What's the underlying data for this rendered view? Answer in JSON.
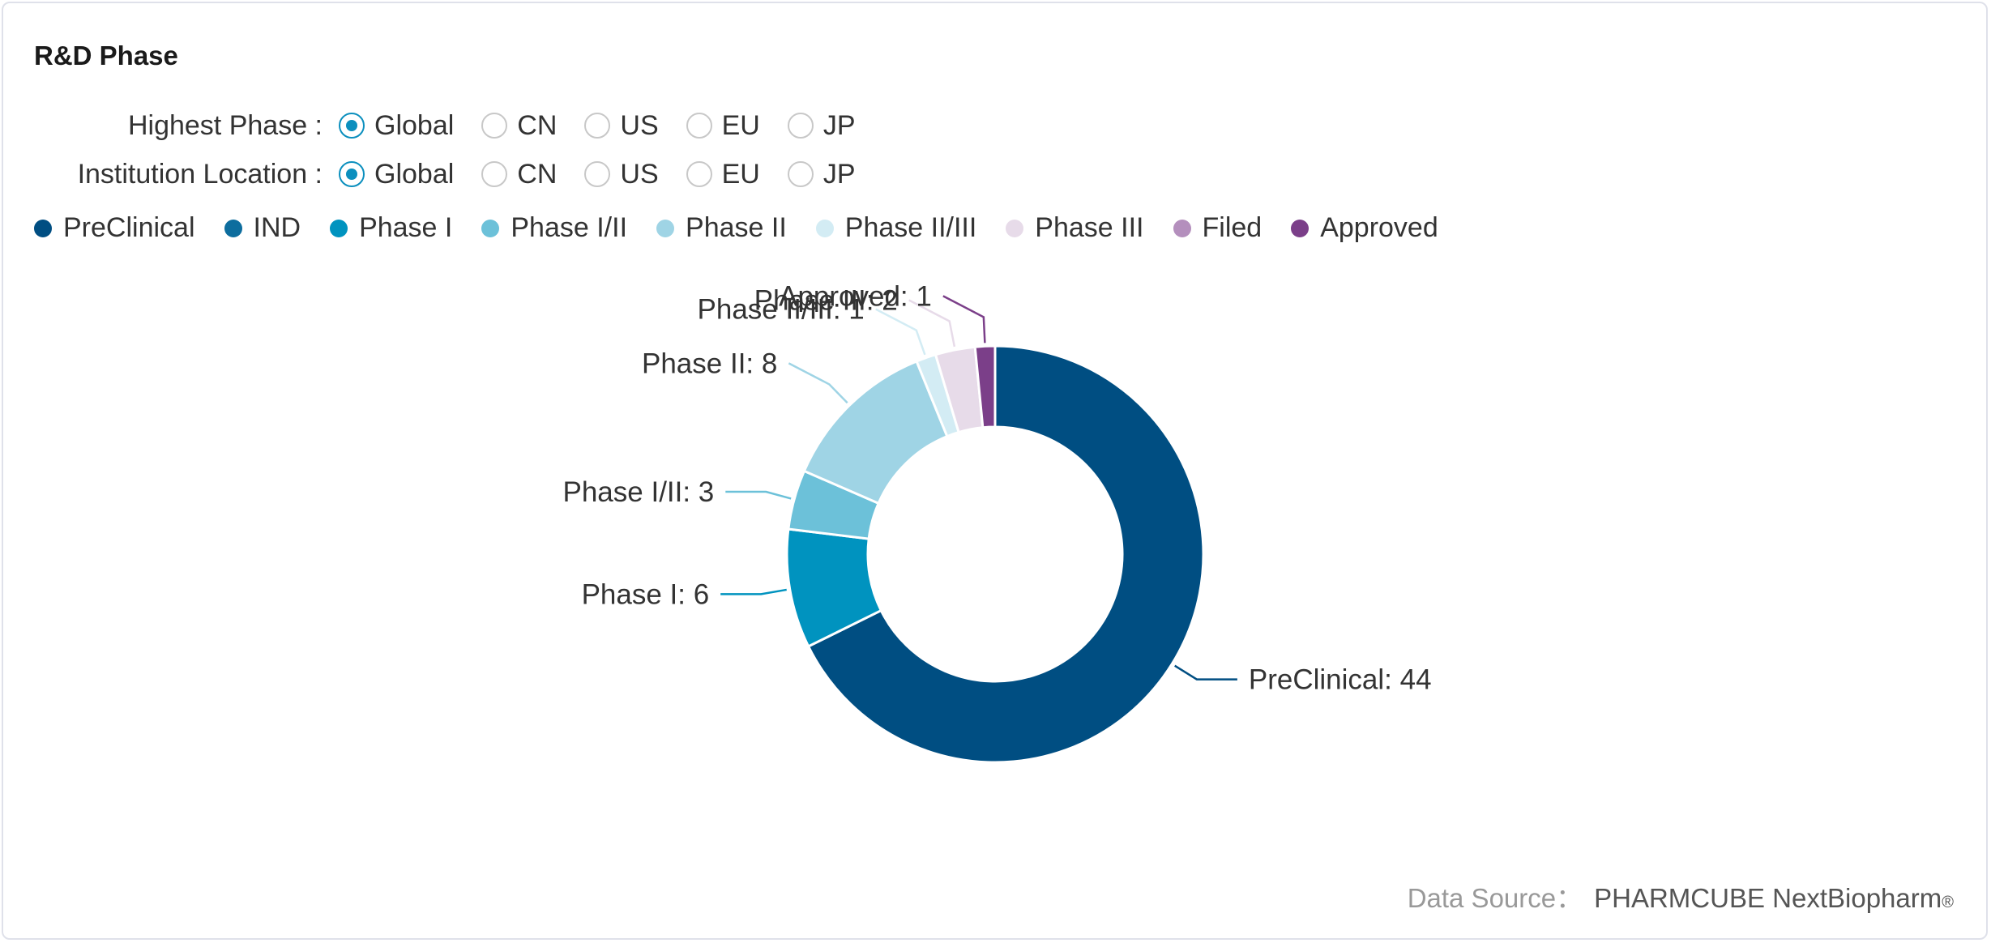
{
  "title": "R&D Phase",
  "filters": [
    {
      "label": "Highest Phase :",
      "options": [
        "Global",
        "CN",
        "US",
        "EU",
        "JP"
      ],
      "selected": 0
    },
    {
      "label": "Institution Location :",
      "options": [
        "Global",
        "CN",
        "US",
        "EU",
        "JP"
      ],
      "selected": 0
    }
  ],
  "legend": [
    {
      "name": "PreClinical",
      "color": "#004e82"
    },
    {
      "name": "IND",
      "color": "#0d6d9e"
    },
    {
      "name": "Phase I",
      "color": "#0093bf"
    },
    {
      "name": "Phase I/II",
      "color": "#6cc1d9"
    },
    {
      "name": "Phase II",
      "color": "#9fd4e5"
    },
    {
      "name": "Phase II/III",
      "color": "#d3ecf4"
    },
    {
      "name": "Phase III",
      "color": "#e7dbe9"
    },
    {
      "name": "Filed",
      "color": "#b48fbd"
    },
    {
      "name": "Approved",
      "color": "#7b3f89"
    }
  ],
  "chart_data": {
    "type": "pie",
    "variant": "donut",
    "categories": [
      "PreClinical",
      "IND",
      "Phase I",
      "Phase I/II",
      "Phase II",
      "Phase II/III",
      "Phase III",
      "Filed",
      "Approved"
    ],
    "values": [
      44,
      0,
      6,
      3,
      8,
      1,
      2,
      0,
      1
    ],
    "labels": [
      "PreClinical: 44",
      "",
      "Phase I: 6",
      "Phase I/II: 3",
      "Phase II: 8",
      "Phase II/III: 1",
      "Phase III: 2",
      "",
      "Approved: 1"
    ],
    "legend_position": "top-left"
  },
  "source": {
    "prefix": "Data Source：",
    "brand": "PHARMCUBE NextBiopharm",
    "mark": "®"
  }
}
